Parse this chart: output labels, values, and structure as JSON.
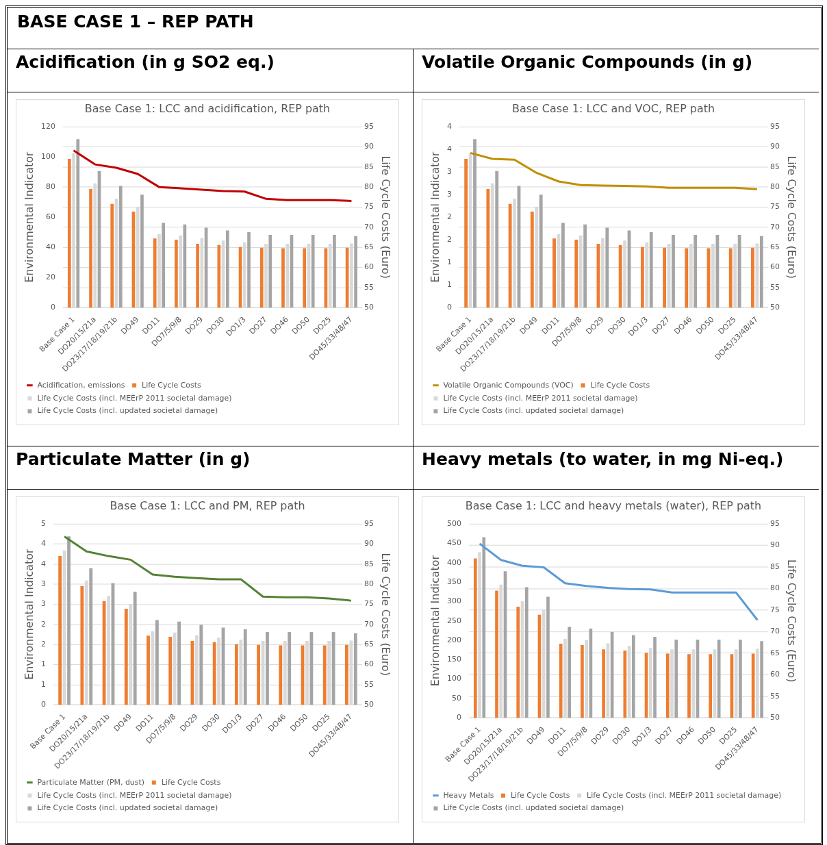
{
  "chart_data": [
    {
      "type": "bar",
      "annotations": [
        "BASE CASE 1 – REP PATH"
      ],
      "subtitle": "Acidification (in g SO2 eq.)",
      "title": "Base Case 1: LCC and acidification, REP path",
      "categories": [
        "Base Case 1",
        "DO20/15/21a",
        "DO23/17/18/19/21b",
        "DO49",
        "DO11",
        "DO7/5/9/8",
        "DO29",
        "DO30",
        "DO1/3",
        "DO27",
        "DO46",
        "DO50",
        "DO25",
        "DO45/33/48/47"
      ],
      "ylabel": "Environmental Indicator",
      "y2label": "Life Cycle Costs (Euro)",
      "ylim": [
        0,
        120
      ],
      "yticks": [
        0,
        20,
        40,
        60,
        80,
        100,
        120
      ],
      "y2lim": [
        50,
        95
      ],
      "y2ticks": [
        50,
        55,
        60,
        65,
        70,
        75,
        80,
        85,
        90,
        95
      ],
      "grid": true,
      "legend": "bottom",
      "series": [
        {
          "name": "Life Cycle Costs",
          "color": "#ed7d31",
          "axis": "y2",
          "values": [
            87.0,
            79.5,
            75.8,
            73.9,
            67.2,
            66.9,
            65.9,
            65.6,
            65.1,
            64.9,
            64.8,
            64.8,
            64.8,
            64.9
          ]
        },
        {
          "name": "Life Cycle Costs (incl. MEErP 2011 societal damage)",
          "color": "#d9d9d9",
          "axis": "y2",
          "values": [
            88.4,
            80.9,
            77.1,
            75.1,
            68.3,
            68.0,
            67.3,
            66.7,
            66.2,
            65.9,
            65.9,
            65.9,
            65.9,
            66.0
          ]
        },
        {
          "name": "Life Cycle Costs (incl. updated societal damage)",
          "color": "#a5a5a5",
          "axis": "y2",
          "values": [
            91.9,
            84.0,
            80.3,
            78.1,
            71.1,
            70.7,
            69.9,
            69.2,
            68.8,
            68.1,
            68.1,
            68.1,
            68.1,
            67.8
          ]
        },
        {
          "name": "Acidification, emissions",
          "type": "line",
          "color": "#c00000",
          "axis": "y",
          "values": [
            104.2,
            95.0,
            92.8,
            88.7,
            80.0,
            79.2,
            78.3,
            77.3,
            77.0,
            72.2,
            71.3,
            71.3,
            71.3,
            70.8
          ]
        }
      ]
    },
    {
      "type": "bar",
      "subtitle": "Volatile Organic Compounds (in g)",
      "title": "Base Case 1: LCC and VOC, REP path",
      "categories": [
        "Base Case 1",
        "DO20/15/21a",
        "DO23/17/18/19/21b",
        "DO49",
        "DO11",
        "DO7/5/9/8",
        "DO29",
        "DO30",
        "DO1/3",
        "DO27",
        "DO46",
        "DO50",
        "DO25",
        "DO45/33/48/47"
      ],
      "ylabel": "Environmental Indicator",
      "y2label": "Life Cycle Costs (Euro)",
      "ylim": [
        0,
        4
      ],
      "yticks": [
        0,
        {
          "value": 0.5,
          "label": "1"
        },
        1,
        {
          "value": 1.5,
          "label": "2"
        },
        2,
        {
          "value": 2.5,
          "label": "3"
        },
        3,
        {
          "value": 3.5,
          "label": "4"
        },
        4
      ],
      "y2lim": [
        50,
        95
      ],
      "y2ticks": [
        50,
        55,
        60,
        65,
        70,
        75,
        80,
        85,
        90,
        95
      ],
      "grid": true,
      "legend": "bottom",
      "series": [
        {
          "name": "Life Cycle Costs",
          "color": "#ed7d31",
          "axis": "y2",
          "values": [
            87.0,
            79.5,
            75.8,
            73.9,
            67.2,
            66.9,
            65.9,
            65.6,
            65.1,
            64.9,
            64.8,
            64.8,
            64.8,
            64.9
          ]
        },
        {
          "name": "Life Cycle Costs (incl. MEErP 2011 societal damage)",
          "color": "#d9d9d9",
          "axis": "y2",
          "values": [
            88.4,
            80.9,
            77.1,
            75.1,
            68.3,
            68.0,
            67.3,
            66.7,
            66.2,
            65.9,
            65.9,
            65.9,
            65.9,
            66.0
          ]
        },
        {
          "name": "Life Cycle Costs (incl. updated societal damage)",
          "color": "#a5a5a5",
          "axis": "y2",
          "values": [
            91.9,
            84.0,
            80.3,
            78.1,
            71.1,
            70.7,
            69.9,
            69.2,
            68.8,
            68.1,
            68.1,
            68.1,
            68.1,
            67.8
          ]
        },
        {
          "name": "Volatile Organic Compounds (VOC)",
          "type": "line",
          "color": "#bf9000",
          "axis": "y",
          "values": [
            3.42,
            3.29,
            3.27,
            2.98,
            2.79,
            2.71,
            2.7,
            2.69,
            2.68,
            2.65,
            2.65,
            2.65,
            2.65,
            2.62
          ]
        }
      ]
    },
    {
      "type": "bar",
      "subtitle": "Particulate Matter (in g)",
      "title": "Base Case 1: LCC and PM, REP path",
      "categories": [
        "Base Case 1",
        "DO20/15/21a",
        "DO23/17/18/19/21b",
        "DO49",
        "DO11",
        "DO7/5/9/8",
        "DO29",
        "DO30",
        "DO1/3",
        "DO27",
        "DO46",
        "DO50",
        "DO25",
        "DO45/33/48/47"
      ],
      "ylabel": "Environmental Indicator",
      "y2label": "Life Cycle Costs (Euro)",
      "ylim": [
        0,
        5
      ],
      "yticks": [
        0,
        {
          "value": 0.556,
          "label": "1"
        },
        {
          "value": 1.111,
          "label": "1"
        },
        {
          "value": 1.667,
          "label": "2"
        },
        {
          "value": 2.222,
          "label": "2"
        },
        {
          "value": 2.778,
          "label": "3"
        },
        {
          "value": 3.333,
          "label": "3"
        },
        {
          "value": 3.889,
          "label": "4"
        },
        {
          "value": 4.444,
          "label": "4"
        },
        5
      ],
      "y2lim": [
        50,
        95
      ],
      "y2ticks": [
        50,
        55,
        60,
        65,
        70,
        75,
        80,
        85,
        90,
        95
      ],
      "grid": true,
      "legend": "bottom",
      "series": [
        {
          "name": "Life Cycle Costs",
          "color": "#ed7d31",
          "axis": "y2",
          "values": [
            87.0,
            79.5,
            75.8,
            73.9,
            67.2,
            66.9,
            65.9,
            65.6,
            65.1,
            64.9,
            64.8,
            64.8,
            64.8,
            64.9
          ]
        },
        {
          "name": "Life Cycle Costs (incl. MEErP 2011 societal damage)",
          "color": "#d9d9d9",
          "axis": "y2",
          "values": [
            88.4,
            80.9,
            77.1,
            75.1,
            68.3,
            68.0,
            67.3,
            66.7,
            66.2,
            65.9,
            65.9,
            65.9,
            65.9,
            66.0
          ]
        },
        {
          "name": "Life Cycle Costs (incl. updated societal damage)",
          "color": "#a5a5a5",
          "axis": "y2",
          "values": [
            91.9,
            84.0,
            80.3,
            78.1,
            71.1,
            70.7,
            69.9,
            69.2,
            68.8,
            68.1,
            68.1,
            68.1,
            68.1,
            67.8
          ]
        },
        {
          "name": "Particulate Matter (PM, dust)",
          "type": "line",
          "color": "#548235",
          "axis": "y",
          "values": [
            4.65,
            4.24,
            4.11,
            4.01,
            3.6,
            3.54,
            3.5,
            3.47,
            3.47,
            2.99,
            2.97,
            2.97,
            2.94,
            2.88
          ]
        }
      ]
    },
    {
      "type": "bar",
      "subtitle": "Heavy metals (to water, in mg Ni-eq.)",
      "title": "Base Case 1: LCC and heavy metals (water), REP path",
      "categories": [
        "Base Case 1",
        "DO20/15/21a",
        "DO23/17/18/19/21b",
        "DO49",
        "DO11",
        "DO7/5/9/8",
        "DO29",
        "DO30",
        "DO1/3",
        "DO27",
        "DO46",
        "DO50",
        "DO25",
        "DO45/33/48/47"
      ],
      "ylabel": "Environmental Indicator",
      "y2label": "Life Cycle Costs (Euro)",
      "ylim": [
        0,
        500
      ],
      "yticks": [
        0,
        50,
        100,
        150,
        200,
        250,
        300,
        350,
        400,
        450,
        500
      ],
      "y2lim": [
        50,
        95
      ],
      "y2ticks": [
        50,
        55,
        60,
        65,
        70,
        75,
        80,
        85,
        90,
        95
      ],
      "grid": true,
      "legend": "bottom",
      "series": [
        {
          "name": "Life Cycle Costs",
          "color": "#ed7d31",
          "axis": "y2",
          "values": [
            87.0,
            79.5,
            75.8,
            73.9,
            67.2,
            66.9,
            65.9,
            65.6,
            65.1,
            64.9,
            64.8,
            64.8,
            64.8,
            64.9
          ]
        },
        {
          "name": "Life Cycle Costs (incl. MEErP 2011 societal damage)",
          "color": "#d9d9d9",
          "axis": "y2",
          "values": [
            88.4,
            80.9,
            77.1,
            75.1,
            68.3,
            68.0,
            67.3,
            66.7,
            66.2,
            65.9,
            65.9,
            65.9,
            65.9,
            66.0
          ]
        },
        {
          "name": "Life Cycle Costs (incl. updated societal damage)",
          "color": "#a5a5a5",
          "axis": "y2",
          "values": [
            91.9,
            84.0,
            80.3,
            78.1,
            71.1,
            70.7,
            69.9,
            69.2,
            68.8,
            68.1,
            68.1,
            68.1,
            68.1,
            67.8
          ]
        },
        {
          "name": "Heavy Metals",
          "type": "line",
          "color": "#5b9bd5",
          "axis": "y",
          "values": [
            449,
            407,
            392,
            388,
            347,
            340,
            335,
            332,
            331,
            323,
            323,
            323,
            323,
            252
          ]
        }
      ]
    }
  ]
}
